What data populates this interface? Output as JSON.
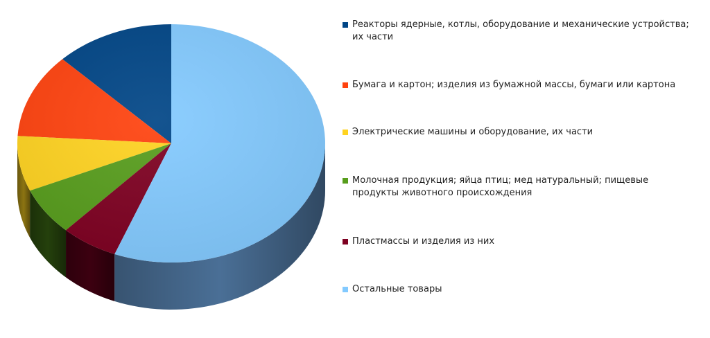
{
  "chart_data": {
    "type": "pie",
    "style": "3d",
    "title": "",
    "legend_position": "right",
    "slices": [
      {
        "label": "Реакторы ядерные, котлы, оборудование и механические устройства; их части",
        "value": 12.5,
        "color": "#004586",
        "dark_color": "#002a55"
      },
      {
        "label": "Бумага и картон; изделия из бумажной массы, бумаги или картона",
        "value": 11.5,
        "color": "#ff420e",
        "dark_color": "#9c2a0a"
      },
      {
        "label": "Электрические машины и оборудование, их части",
        "value": 7.5,
        "color": "#ffd320",
        "dark_color": "#8c7412"
      },
      {
        "label": "Молочная продукция; яйца птиц; мед натуральный; пищевые продукты животного происхождения",
        "value": 6.5,
        "color": "#579d1c",
        "dark_color": "#24400c"
      },
      {
        "label": "Пластмассы и изделия из них",
        "value": 6.0,
        "color": "#7e0021",
        "dark_color": "#3c0010"
      },
      {
        "label": "Остальные товары",
        "value": 56.0,
        "color": "#83caff",
        "dark_color": "#4a6f96"
      }
    ]
  }
}
